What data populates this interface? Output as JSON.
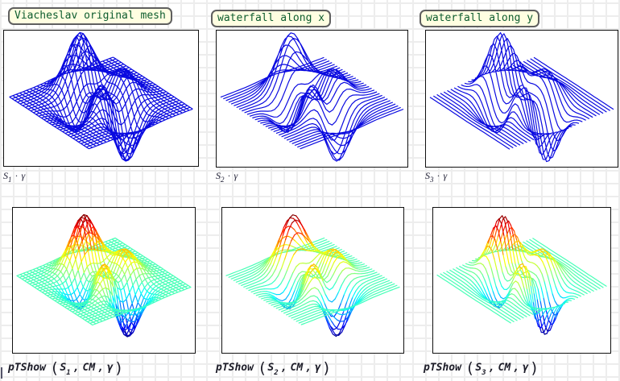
{
  "labels": [
    {
      "text": "Viacheslav original mesh"
    },
    {
      "text": "waterfall along x"
    },
    {
      "text": "waterfall along y"
    }
  ],
  "captions_row1": [
    {
      "var": "S",
      "sub": "1",
      "op": "·",
      "arg": "γ"
    },
    {
      "var": "S",
      "sub": "2",
      "op": "·",
      "arg": "γ"
    },
    {
      "var": "S",
      "sub": "3",
      "op": "·",
      "arg": "γ"
    }
  ],
  "captions_row2": [
    {
      "fn": "pTShow",
      "lparen": "(",
      "var": "S",
      "sub": "1",
      "sep1": ",",
      "arg2": "CM",
      "sep2": ",",
      "arg3": "γ",
      "rparen": ")"
    },
    {
      "fn": "pTShow",
      "lparen": "(",
      "var": "S",
      "sub": "2",
      "sep1": ",",
      "arg2": "CM",
      "sep2": ",",
      "arg3": "γ",
      "rparen": ")"
    },
    {
      "fn": "pTShow",
      "lparen": "(",
      "var": "S",
      "sub": "3",
      "sep1": ",",
      "arg2": "CM",
      "sep2": ",",
      "arg3": "γ",
      "rparen": ")"
    }
  ],
  "chart_data": {
    "type": "surface-mesh",
    "surface": "peaks",
    "formula": "z = 3(1-x)^2*exp(-x^2-(y+1)^2) - 10(x/5 - x^3 - y^5)*exp(-x^2-y^2) - (1/3)*exp(-(x+1)^2-y^2)",
    "x_range": [
      -3,
      3
    ],
    "y_range": [
      -3,
      3
    ],
    "z_range": [
      -6.55,
      8.08
    ],
    "grid_n": 31,
    "view": {
      "azimuth": -37.5,
      "elevation": 30
    },
    "wire_color": "#0a0ae0",
    "colormap": "jet",
    "axes_visible": false,
    "panels": [
      {
        "name": "original-mesh",
        "style": "mesh",
        "palette": "wire",
        "title": "Viacheslav original mesh"
      },
      {
        "name": "waterfall-along-x",
        "style": "waterfall-x",
        "palette": "wire",
        "title": "waterfall along x"
      },
      {
        "name": "waterfall-along-y",
        "style": "waterfall-y",
        "palette": "wire",
        "title": "waterfall along y"
      },
      {
        "name": "original-mesh-colored",
        "style": "mesh",
        "palette": "colormap",
        "title": ""
      },
      {
        "name": "waterfall-along-x-colored",
        "style": "waterfall-x",
        "palette": "colormap",
        "title": ""
      },
      {
        "name": "waterfall-along-y-colored",
        "style": "waterfall-y",
        "palette": "colormap",
        "title": ""
      }
    ]
  }
}
